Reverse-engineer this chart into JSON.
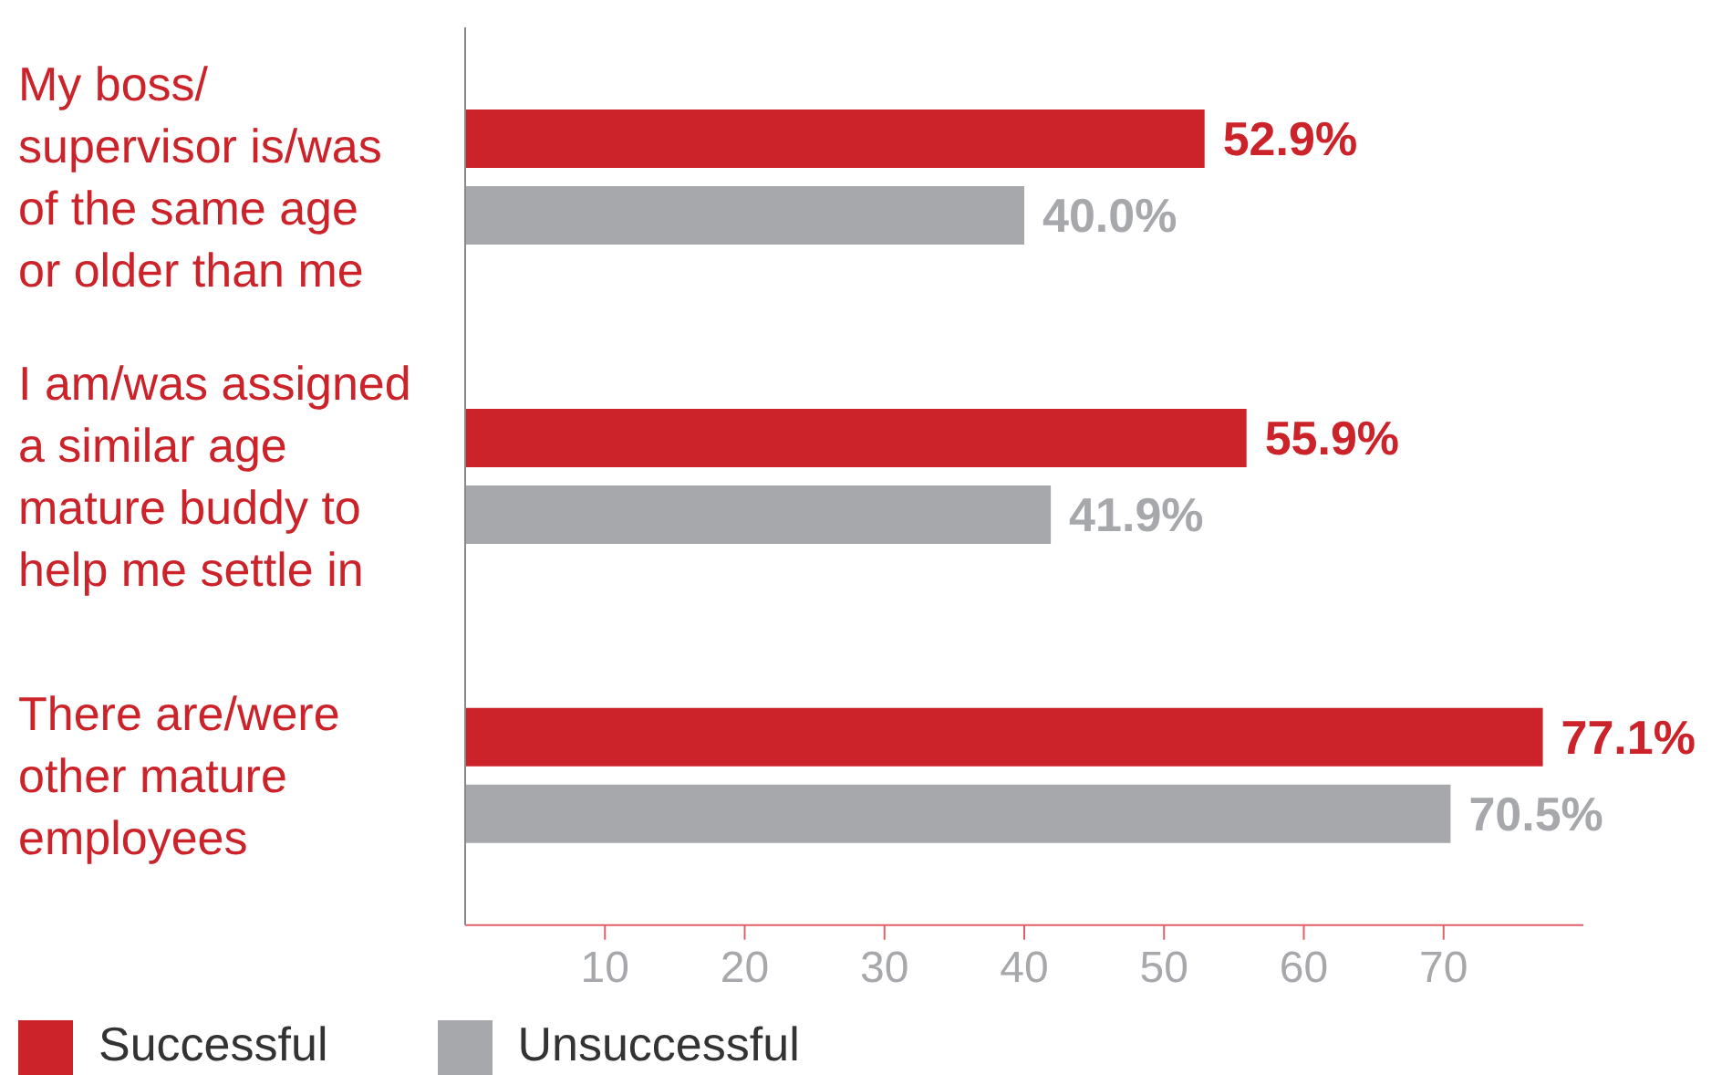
{
  "chart_data": {
    "type": "bar",
    "orientation": "horizontal",
    "categories": [
      "My boss/ supervisor is/was of the same age or older than me",
      "I am/was assigned a similar age mature buddy to help me settle in",
      "There are/were other mature employees"
    ],
    "series": [
      {
        "name": "Successful",
        "color": "#cc2229",
        "values": [
          52.9,
          55.9,
          77.1
        ],
        "value_labels": [
          "52.9%",
          "55.9%",
          "77.1%"
        ]
      },
      {
        "name": "Unsuccessful",
        "color": "#a7a8ab",
        "values": [
          40.0,
          41.9,
          70.5
        ],
        "value_labels": [
          "40.0%",
          "41.9%",
          "70.5%"
        ]
      }
    ],
    "xlim": [
      0,
      80
    ],
    "xticks": [
      10,
      20,
      30,
      40,
      50,
      60,
      70
    ],
    "legend": "bottom left"
  }
}
